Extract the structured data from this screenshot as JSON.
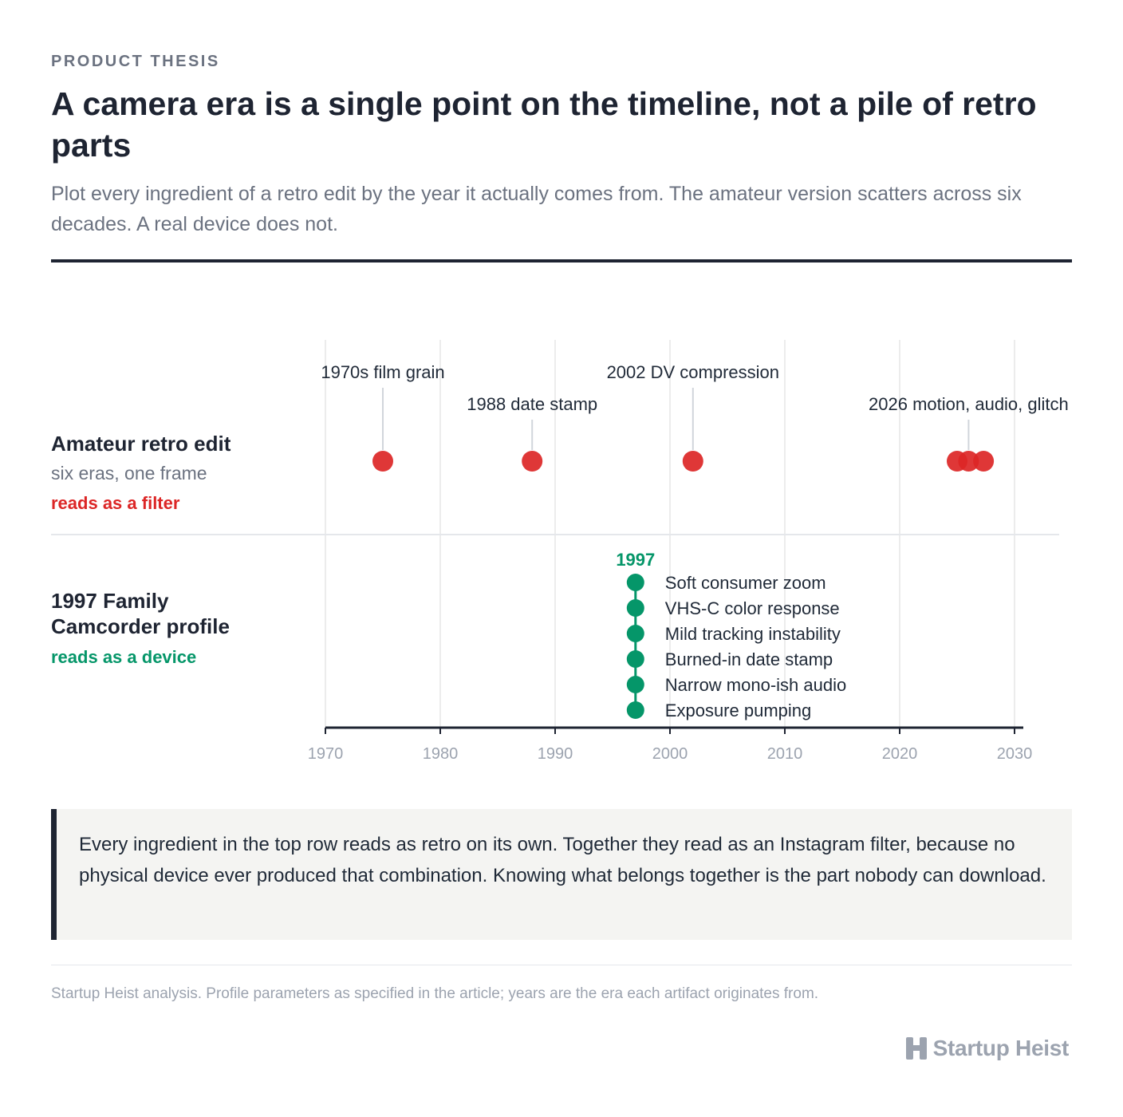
{
  "header": {
    "eyebrow": "PRODUCT THESIS",
    "title": "A camera era is a single point on the timeline, not a pile of retro parts",
    "subtitle": "Plot every ingredient of a retro edit by the year it actually comes from. The amateur version scatters across six decades. A real device does not."
  },
  "rows": {
    "amateur": {
      "name": "Amateur retro edit",
      "desc": "six eras, one frame",
      "verdict": "reads as a filter"
    },
    "profile": {
      "name_line1": "1997 Family",
      "name_line2": "Camcorder profile",
      "verdict": "reads as a device"
    }
  },
  "colors": {
    "amateur": "#dc2626",
    "profile": "#059669",
    "axis": "#1e2432",
    "grid": "#ececec",
    "tick_label": "#9ca3af"
  },
  "chart_data": {
    "type": "scatter",
    "x_axis": {
      "range": [
        1970,
        2030
      ],
      "ticks": [
        1970,
        1980,
        1990,
        2000,
        2010,
        2020,
        2030
      ],
      "grid": true
    },
    "series": [
      {
        "row": "Amateur retro edit",
        "color": "#dc2626",
        "points": [
          {
            "x": 1975,
            "label": "1970s film grain"
          },
          {
            "x": 1988,
            "label": "1988 date stamp"
          },
          {
            "x": 2002,
            "label": "2002 DV compression"
          },
          {
            "x": 2025
          },
          {
            "x": 2026,
            "label": "2026 motion, audio, glitch"
          },
          {
            "x": 2027.3
          }
        ]
      },
      {
        "row": "1997 Family Camcorder profile",
        "color": "#059669",
        "year_label": "1997",
        "points": [
          {
            "x": 1997,
            "label": "Soft consumer zoom"
          },
          {
            "x": 1997,
            "label": "VHS-C color response"
          },
          {
            "x": 1997,
            "label": "Mild tracking instability"
          },
          {
            "x": 1997,
            "label": "Burned-in date stamp"
          },
          {
            "x": 1997,
            "label": "Narrow mono-ish audio"
          },
          {
            "x": 1997,
            "label": "Exposure pumping"
          }
        ]
      }
    ]
  },
  "callout": {
    "text": "Every ingredient in the top row reads as retro on its own. Together they read as an Instagram filter, because no physical device ever produced that combination. Knowing what belongs together is the part nobody can download."
  },
  "footer": {
    "source": "Startup Heist analysis. Profile parameters as specified in the article; years are the era each artifact originates from.",
    "brand": "Startup Heist"
  }
}
